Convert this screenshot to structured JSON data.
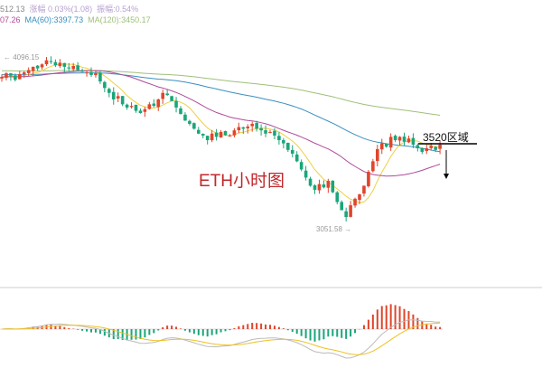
{
  "header": {
    "line1": [
      {
        "text": "512.13",
        "color": "#888888"
      },
      {
        "text": "涨幅 0.03%(1.08)",
        "color": "#b9a0d0"
      },
      {
        "text": "振幅:0.54%",
        "color": "#b9a0d0"
      }
    ],
    "line2": [
      {
        "text": "07.26",
        "color": "#b04a9a"
      },
      {
        "text": "MA(60):3397.73",
        "color": "#3a8fc0"
      },
      {
        "text": "MA(120):3450.17",
        "color": "#9fc07a"
      }
    ]
  },
  "chart_data": {
    "type": "candlestick",
    "title": "ETH小时图",
    "high_label": "4096.15",
    "low_label": "3051.58",
    "annotation": "3520区域",
    "annotation_level": 3520,
    "closes": [
      3968,
      3990,
      3975,
      3950,
      3985,
      3996,
      4010,
      4030,
      4020,
      4045,
      4070,
      4063,
      4040,
      4055,
      4030,
      4020,
      4035,
      4010,
      4000,
      3996,
      3980,
      3990,
      3940,
      3900,
      3870,
      3830,
      3850,
      3800,
      3780,
      3790,
      3760,
      3746,
      3770,
      3800,
      3790,
      3830,
      3870,
      3857,
      3820,
      3780,
      3740,
      3700,
      3680,
      3650,
      3620,
      3608,
      3580,
      3620,
      3600,
      3630,
      3610,
      3608,
      3640,
      3660,
      3650,
      3663,
      3680,
      3650,
      3640,
      3620,
      3630,
      3608,
      3580,
      3560,
      3520,
      3497,
      3450,
      3400,
      3350,
      3300,
      3275,
      3310,
      3290,
      3330,
      3260,
      3200,
      3150,
      3108,
      3180,
      3220,
      3247,
      3300,
      3386,
      3450,
      3525,
      3560,
      3540,
      3600,
      3580,
      3600,
      3570,
      3590,
      3552,
      3530,
      3508,
      3530,
      3545,
      3520,
      3552
    ],
    "ma_lines": [
      {
        "name": "MA(60)",
        "color": "#3a8fc0",
        "period": 60
      },
      {
        "name": "MA(120)",
        "color": "#9fc07a",
        "period": 120
      },
      {
        "color": "#f0d040",
        "period": 7
      },
      {
        "color": "#b04a9a",
        "period": 25
      }
    ],
    "up_color": "#e0452c",
    "down_color": "#1aa67a",
    "subchart": "MACD"
  }
}
